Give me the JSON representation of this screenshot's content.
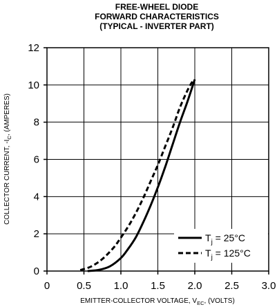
{
  "chart_data": {
    "type": "line",
    "title": [
      "FREE-WHEEL DIODE",
      "FORWARD CHARACTERISTICS",
      "(TYPICAL - INVERTER PART)"
    ],
    "xlabel": {
      "main": "EMITTER-COLLECTOR VOLTAGE, V",
      "sub": "EC",
      "rest": ", (VOLTS)"
    },
    "ylabel": {
      "main": "COLLECTOR CURRENT, -I",
      "sub": "C",
      "rest": ", (AMPERES)"
    },
    "xlim": [
      0,
      3.0
    ],
    "ylim": [
      0,
      12
    ],
    "xticks": [
      "0",
      "0.5",
      "1.0",
      "1.5",
      "2.0",
      "2.5",
      "3.0"
    ],
    "yticks": [
      "0",
      "2",
      "4",
      "6",
      "8",
      "10",
      "12"
    ],
    "grid": true,
    "legend_position": "bottom-right",
    "series": [
      {
        "name": "T_j = 25°C",
        "legend": {
          "pre": "T",
          "sub": "j",
          "post": " = 25°C"
        },
        "style": "solid",
        "color": "#000000",
        "points": [
          [
            0.55,
            0.0
          ],
          [
            0.7,
            0.06
          ],
          [
            0.85,
            0.25
          ],
          [
            1.0,
            0.7
          ],
          [
            1.1,
            1.2
          ],
          [
            1.2,
            1.8
          ],
          [
            1.3,
            2.6
          ],
          [
            1.4,
            3.5
          ],
          [
            1.5,
            4.5
          ],
          [
            1.6,
            5.6
          ],
          [
            1.7,
            6.8
          ],
          [
            1.8,
            8.0
          ],
          [
            1.9,
            9.1
          ],
          [
            2.0,
            10.3
          ]
        ]
      },
      {
        "name": "T_j = 125°C",
        "legend": {
          "pre": "T",
          "sub": "j",
          "post": " = 125°C"
        },
        "style": "dashed",
        "color": "#000000",
        "points": [
          [
            0.45,
            0.05
          ],
          [
            0.6,
            0.25
          ],
          [
            0.75,
            0.65
          ],
          [
            0.9,
            1.25
          ],
          [
            1.0,
            1.8
          ],
          [
            1.1,
            2.4
          ],
          [
            1.2,
            3.1
          ],
          [
            1.3,
            3.9
          ],
          [
            1.4,
            4.8
          ],
          [
            1.5,
            5.7
          ],
          [
            1.6,
            6.7
          ],
          [
            1.7,
            7.7
          ],
          [
            1.8,
            8.8
          ],
          [
            1.9,
            9.7
          ],
          [
            1.97,
            10.2
          ]
        ]
      }
    ]
  }
}
